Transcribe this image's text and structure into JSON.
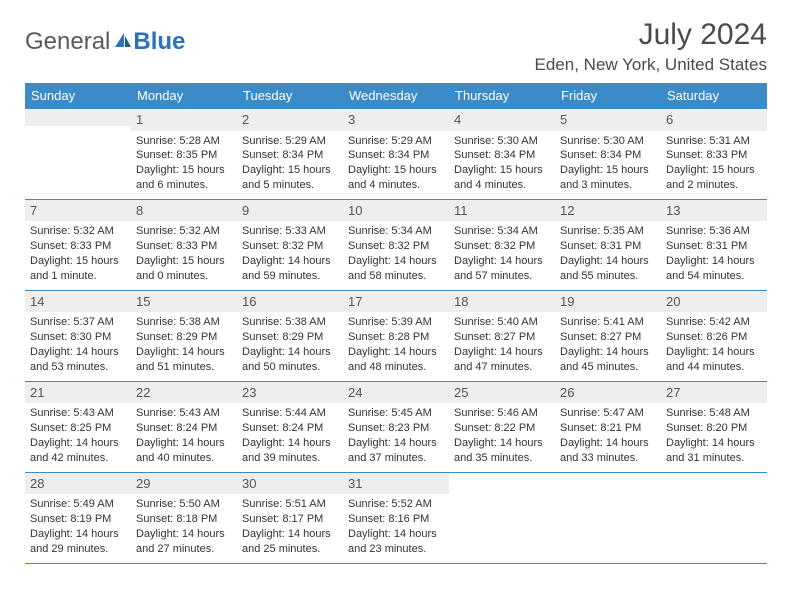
{
  "logo": {
    "text1": "General",
    "text2": "Blue"
  },
  "title": "July 2024",
  "location": "Eden, New York, United States",
  "header_bg": "#3b8bc9",
  "day_headers": [
    "Sunday",
    "Monday",
    "Tuesday",
    "Wednesday",
    "Thursday",
    "Friday",
    "Saturday"
  ],
  "weeks": [
    [
      null,
      {
        "n": "1",
        "sr": "Sunrise: 5:28 AM",
        "ss": "Sunset: 8:35 PM",
        "d1": "Daylight: 15 hours",
        "d2": "and 6 minutes."
      },
      {
        "n": "2",
        "sr": "Sunrise: 5:29 AM",
        "ss": "Sunset: 8:34 PM",
        "d1": "Daylight: 15 hours",
        "d2": "and 5 minutes."
      },
      {
        "n": "3",
        "sr": "Sunrise: 5:29 AM",
        "ss": "Sunset: 8:34 PM",
        "d1": "Daylight: 15 hours",
        "d2": "and 4 minutes."
      },
      {
        "n": "4",
        "sr": "Sunrise: 5:30 AM",
        "ss": "Sunset: 8:34 PM",
        "d1": "Daylight: 15 hours",
        "d2": "and 4 minutes."
      },
      {
        "n": "5",
        "sr": "Sunrise: 5:30 AM",
        "ss": "Sunset: 8:34 PM",
        "d1": "Daylight: 15 hours",
        "d2": "and 3 minutes."
      },
      {
        "n": "6",
        "sr": "Sunrise: 5:31 AM",
        "ss": "Sunset: 8:33 PM",
        "d1": "Daylight: 15 hours",
        "d2": "and 2 minutes."
      }
    ],
    [
      {
        "n": "7",
        "sr": "Sunrise: 5:32 AM",
        "ss": "Sunset: 8:33 PM",
        "d1": "Daylight: 15 hours",
        "d2": "and 1 minute."
      },
      {
        "n": "8",
        "sr": "Sunrise: 5:32 AM",
        "ss": "Sunset: 8:33 PM",
        "d1": "Daylight: 15 hours",
        "d2": "and 0 minutes."
      },
      {
        "n": "9",
        "sr": "Sunrise: 5:33 AM",
        "ss": "Sunset: 8:32 PM",
        "d1": "Daylight: 14 hours",
        "d2": "and 59 minutes."
      },
      {
        "n": "10",
        "sr": "Sunrise: 5:34 AM",
        "ss": "Sunset: 8:32 PM",
        "d1": "Daylight: 14 hours",
        "d2": "and 58 minutes."
      },
      {
        "n": "11",
        "sr": "Sunrise: 5:34 AM",
        "ss": "Sunset: 8:32 PM",
        "d1": "Daylight: 14 hours",
        "d2": "and 57 minutes."
      },
      {
        "n": "12",
        "sr": "Sunrise: 5:35 AM",
        "ss": "Sunset: 8:31 PM",
        "d1": "Daylight: 14 hours",
        "d2": "and 55 minutes."
      },
      {
        "n": "13",
        "sr": "Sunrise: 5:36 AM",
        "ss": "Sunset: 8:31 PM",
        "d1": "Daylight: 14 hours",
        "d2": "and 54 minutes."
      }
    ],
    [
      {
        "n": "14",
        "sr": "Sunrise: 5:37 AM",
        "ss": "Sunset: 8:30 PM",
        "d1": "Daylight: 14 hours",
        "d2": "and 53 minutes."
      },
      {
        "n": "15",
        "sr": "Sunrise: 5:38 AM",
        "ss": "Sunset: 8:29 PM",
        "d1": "Daylight: 14 hours",
        "d2": "and 51 minutes."
      },
      {
        "n": "16",
        "sr": "Sunrise: 5:38 AM",
        "ss": "Sunset: 8:29 PM",
        "d1": "Daylight: 14 hours",
        "d2": "and 50 minutes."
      },
      {
        "n": "17",
        "sr": "Sunrise: 5:39 AM",
        "ss": "Sunset: 8:28 PM",
        "d1": "Daylight: 14 hours",
        "d2": "and 48 minutes."
      },
      {
        "n": "18",
        "sr": "Sunrise: 5:40 AM",
        "ss": "Sunset: 8:27 PM",
        "d1": "Daylight: 14 hours",
        "d2": "and 47 minutes."
      },
      {
        "n": "19",
        "sr": "Sunrise: 5:41 AM",
        "ss": "Sunset: 8:27 PM",
        "d1": "Daylight: 14 hours",
        "d2": "and 45 minutes."
      },
      {
        "n": "20",
        "sr": "Sunrise: 5:42 AM",
        "ss": "Sunset: 8:26 PM",
        "d1": "Daylight: 14 hours",
        "d2": "and 44 minutes."
      }
    ],
    [
      {
        "n": "21",
        "sr": "Sunrise: 5:43 AM",
        "ss": "Sunset: 8:25 PM",
        "d1": "Daylight: 14 hours",
        "d2": "and 42 minutes."
      },
      {
        "n": "22",
        "sr": "Sunrise: 5:43 AM",
        "ss": "Sunset: 8:24 PM",
        "d1": "Daylight: 14 hours",
        "d2": "and 40 minutes."
      },
      {
        "n": "23",
        "sr": "Sunrise: 5:44 AM",
        "ss": "Sunset: 8:24 PM",
        "d1": "Daylight: 14 hours",
        "d2": "and 39 minutes."
      },
      {
        "n": "24",
        "sr": "Sunrise: 5:45 AM",
        "ss": "Sunset: 8:23 PM",
        "d1": "Daylight: 14 hours",
        "d2": "and 37 minutes."
      },
      {
        "n": "25",
        "sr": "Sunrise: 5:46 AM",
        "ss": "Sunset: 8:22 PM",
        "d1": "Daylight: 14 hours",
        "d2": "and 35 minutes."
      },
      {
        "n": "26",
        "sr": "Sunrise: 5:47 AM",
        "ss": "Sunset: 8:21 PM",
        "d1": "Daylight: 14 hours",
        "d2": "and 33 minutes."
      },
      {
        "n": "27",
        "sr": "Sunrise: 5:48 AM",
        "ss": "Sunset: 8:20 PM",
        "d1": "Daylight: 14 hours",
        "d2": "and 31 minutes."
      }
    ],
    [
      {
        "n": "28",
        "sr": "Sunrise: 5:49 AM",
        "ss": "Sunset: 8:19 PM",
        "d1": "Daylight: 14 hours",
        "d2": "and 29 minutes."
      },
      {
        "n": "29",
        "sr": "Sunrise: 5:50 AM",
        "ss": "Sunset: 8:18 PM",
        "d1": "Daylight: 14 hours",
        "d2": "and 27 minutes."
      },
      {
        "n": "30",
        "sr": "Sunrise: 5:51 AM",
        "ss": "Sunset: 8:17 PM",
        "d1": "Daylight: 14 hours",
        "d2": "and 25 minutes."
      },
      {
        "n": "31",
        "sr": "Sunrise: 5:52 AM",
        "ss": "Sunset: 8:16 PM",
        "d1": "Daylight: 14 hours",
        "d2": "and 23 minutes."
      },
      null,
      null,
      null
    ]
  ]
}
